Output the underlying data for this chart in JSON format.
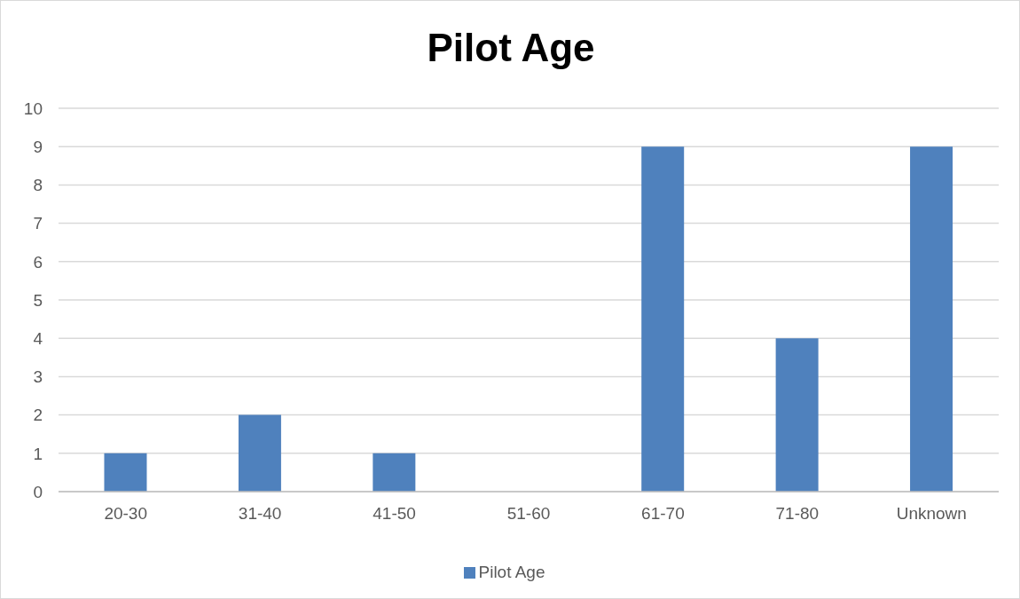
{
  "chart_data": {
    "type": "bar",
    "title": "Pilot Age",
    "categories": [
      "20-30",
      "31-40",
      "41-50",
      "51-60",
      "61-70",
      "71-80",
      "Unknown"
    ],
    "series": [
      {
        "name": "Pilot Age",
        "color": "#4f81bd",
        "values": [
          1,
          2,
          1,
          0,
          9,
          4,
          9
        ]
      }
    ],
    "ylim": [
      0,
      10
    ],
    "yticks": [
      0,
      1,
      2,
      3,
      4,
      5,
      6,
      7,
      8,
      9,
      10
    ],
    "grid": "y",
    "legend": "bottom"
  }
}
